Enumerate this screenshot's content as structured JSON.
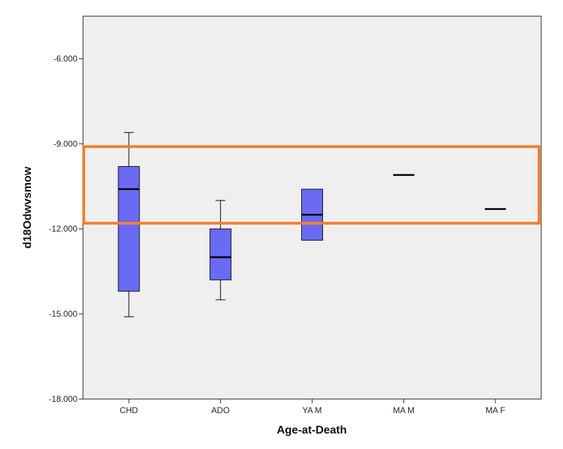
{
  "chart_data": {
    "type": "boxplot",
    "xlabel": "Age-at-Death",
    "ylabel": "d18Odwvsmow",
    "ylim": [
      -18.0,
      -4.5
    ],
    "yticks": [
      -6.0,
      -9.0,
      -12.0,
      -15.0,
      -18.0
    ],
    "ytick_labels": [
      "-6.000",
      "-9.000",
      "-12.000",
      "-15.000",
      "-18.000"
    ],
    "grid": false,
    "categories": [
      "CHD",
      "ADO",
      "YA M",
      "MA M",
      "MA F"
    ],
    "boxes": [
      {
        "category": "CHD",
        "whisker_low": -15.1,
        "q1": -14.2,
        "median": -10.6,
        "q3": -9.8,
        "whisker_high": -8.6
      },
      {
        "category": "ADO",
        "whisker_low": -14.5,
        "q1": -13.8,
        "median": -13.0,
        "q3": -12.0,
        "whisker_high": -11.0
      },
      {
        "category": "YA M",
        "whisker_low": null,
        "q1": -12.4,
        "median": -11.5,
        "q3": -10.6,
        "whisker_high": null
      },
      {
        "category": "MA M",
        "whisker_low": null,
        "q1": null,
        "median": -10.1,
        "q3": null,
        "whisker_high": null
      },
      {
        "category": "MA F",
        "whisker_low": null,
        "q1": null,
        "median": -11.3,
        "q3": null,
        "whisker_high": null
      }
    ],
    "highlight": {
      "y_range": [
        -11.8,
        -9.1
      ],
      "color": "#f08030"
    },
    "colors": {
      "box_fill": "#6a6af5",
      "plot_background": "#efefef",
      "axis": "#222222"
    }
  }
}
